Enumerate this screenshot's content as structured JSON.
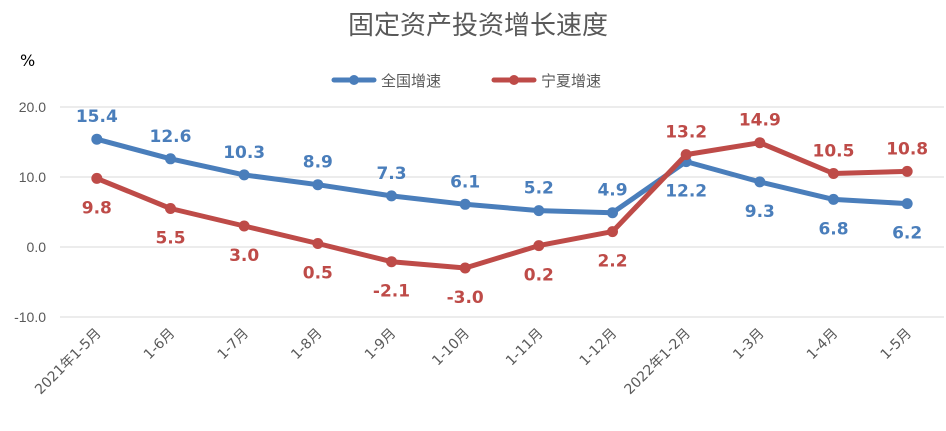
{
  "chart_data": {
    "type": "line",
    "title": "固定资产投资增长速度",
    "ylabel": "%",
    "ylim": [
      -10,
      20
    ],
    "yticks": [
      "20.0",
      "10.0",
      "0.0",
      "-10.0"
    ],
    "categories": [
      "2021年1-5月",
      "1-6月",
      "1-7月",
      "1-8月",
      "1-9月",
      "1-10月",
      "1-11月",
      "1-12月",
      "2022年1-2月",
      "1-3月",
      "1-4月",
      "1-5月"
    ],
    "series": [
      {
        "name": "全国增速",
        "color": "#4a7ebb",
        "values": [
          15.4,
          12.6,
          10.3,
          8.9,
          7.3,
          6.1,
          5.2,
          4.9,
          12.2,
          9.3,
          6.8,
          6.2
        ],
        "labels": [
          "15.4",
          "12.6",
          "10.3",
          "8.9",
          "7.3",
          "6.1",
          "5.2",
          "4.9",
          "12.2",
          "9.3",
          "6.8",
          "6.2"
        ]
      },
      {
        "name": "宁夏增速",
        "color": "#be4b48",
        "values": [
          9.8,
          5.5,
          3.0,
          0.5,
          -2.1,
          -3.0,
          0.2,
          2.2,
          13.2,
          14.9,
          10.5,
          10.8
        ],
        "labels": [
          "9.8",
          "5.5",
          "3.0",
          "0.5",
          "-2.1",
          "-3.0",
          "0.2",
          "2.2",
          "13.2",
          "14.9",
          "10.5",
          "10.8"
        ]
      }
    ],
    "grid": true,
    "legend_position": "top-center"
  }
}
